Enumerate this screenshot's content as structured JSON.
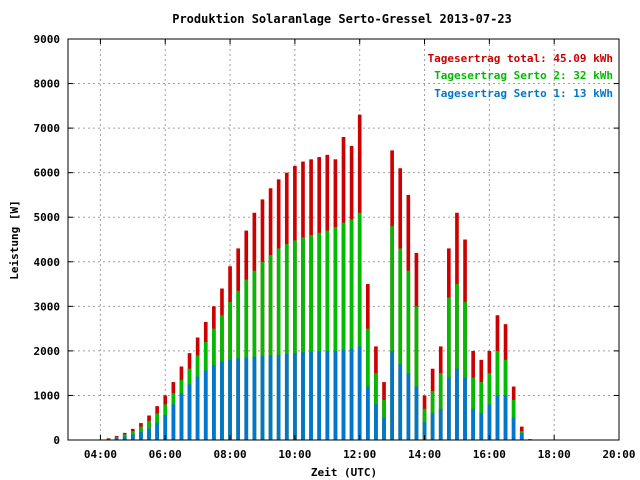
{
  "chart_data": {
    "type": "bar",
    "title": "Produktion Solaranlage Serto-Gressel 2013-07-23",
    "xlabel": "Zeit (UTC)",
    "ylabel": "Leistung [W]",
    "x_unit": "hours UTC",
    "xlim": [
      3.0,
      20.0
    ],
    "ylim": [
      0,
      9000
    ],
    "xticks": [
      {
        "value": 4,
        "label": "04:00"
      },
      {
        "value": 6,
        "label": "06:00"
      },
      {
        "value": 8,
        "label": "08:00"
      },
      {
        "value": 10,
        "label": "10:00"
      },
      {
        "value": 12,
        "label": "12:00"
      },
      {
        "value": 14,
        "label": "14:00"
      },
      {
        "value": 16,
        "label": "16:00"
      },
      {
        "value": 18,
        "label": "18:00"
      },
      {
        "value": 20,
        "label": "20:00"
      }
    ],
    "yticks": [
      {
        "value": 0,
        "label": "0"
      },
      {
        "value": 1000,
        "label": "1000"
      },
      {
        "value": 2000,
        "label": "2000"
      },
      {
        "value": 3000,
        "label": "3000"
      },
      {
        "value": 4000,
        "label": "4000"
      },
      {
        "value": 5000,
        "label": "5000"
      },
      {
        "value": 6000,
        "label": "6000"
      },
      {
        "value": 7000,
        "label": "7000"
      },
      {
        "value": 8000,
        "label": "8000"
      },
      {
        "value": 9000,
        "label": "9000"
      }
    ],
    "grid": true,
    "legend_position": "top-right",
    "legend": [
      {
        "label": "Tagesertrag total: 45.09 kWh",
        "color": "#cc0000"
      },
      {
        "label": "Tagesertrag Serto 2: 32 kWh",
        "color": "#00bb00"
      },
      {
        "label": "Tagesertrag Serto 1: 13 kWh",
        "color": "#0077cc"
      }
    ],
    "colors": {
      "total": "#cc0000",
      "serto2": "#00bb00",
      "serto1": "#0077cc"
    },
    "series_keys": [
      "t",
      "total",
      "serto2",
      "serto1"
    ],
    "rows": [
      [
        4.0,
        10,
        10,
        5
      ],
      [
        4.25,
        40,
        30,
        20
      ],
      [
        4.5,
        90,
        70,
        50
      ],
      [
        4.75,
        160,
        130,
        80
      ],
      [
        5.0,
        250,
        200,
        120
      ],
      [
        5.25,
        380,
        300,
        180
      ],
      [
        5.5,
        550,
        430,
        260
      ],
      [
        5.75,
        760,
        600,
        380
      ],
      [
        6.0,
        1000,
        800,
        560
      ],
      [
        6.25,
        1300,
        1050,
        800
      ],
      [
        6.5,
        1650,
        1350,
        1050
      ],
      [
        6.75,
        1950,
        1600,
        1250
      ],
      [
        7.0,
        2300,
        1900,
        1420
      ],
      [
        7.25,
        2650,
        2200,
        1560
      ],
      [
        7.5,
        3000,
        2500,
        1680
      ],
      [
        7.75,
        3400,
        2800,
        1760
      ],
      [
        8.0,
        3900,
        3100,
        1800
      ],
      [
        8.25,
        4300,
        3350,
        1830
      ],
      [
        8.5,
        4700,
        3600,
        1850
      ],
      [
        8.75,
        5100,
        3800,
        1870
      ],
      [
        9.0,
        5400,
        4000,
        1880
      ],
      [
        9.25,
        5650,
        4150,
        1900
      ],
      [
        9.5,
        5850,
        4300,
        1910
      ],
      [
        9.75,
        6000,
        4400,
        1930
      ],
      [
        10.0,
        6150,
        4480,
        1950
      ],
      [
        10.25,
        6250,
        4550,
        1970
      ],
      [
        10.5,
        6300,
        4600,
        1980
      ],
      [
        10.75,
        6350,
        4650,
        2000
      ],
      [
        11.0,
        6400,
        4700,
        2000
      ],
      [
        11.25,
        6300,
        4780,
        2000
      ],
      [
        11.5,
        6800,
        4880,
        2030
      ],
      [
        11.75,
        6600,
        4950,
        2050
      ],
      [
        12.0,
        7300,
        5100,
        2100
      ],
      [
        12.25,
        3500,
        2500,
        1200
      ],
      [
        12.5,
        2100,
        1500,
        800
      ],
      [
        12.75,
        1300,
        900,
        500
      ],
      [
        13.0,
        6500,
        4800,
        2000
      ],
      [
        13.25,
        6100,
        4300,
        1700
      ],
      [
        13.5,
        5500,
        3800,
        1500
      ],
      [
        13.75,
        4200,
        3000,
        1200
      ],
      [
        14.0,
        1000,
        700,
        400
      ],
      [
        14.25,
        1600,
        1100,
        600
      ],
      [
        14.5,
        2100,
        1500,
        700
      ],
      [
        14.75,
        4300,
        3200,
        1400
      ],
      [
        15.0,
        5100,
        3500,
        1600
      ],
      [
        15.25,
        4500,
        3100,
        1400
      ],
      [
        15.5,
        2000,
        1400,
        700
      ],
      [
        15.75,
        1800,
        1300,
        600
      ],
      [
        16.0,
        2000,
        1500,
        800
      ],
      [
        16.25,
        2800,
        2000,
        1000
      ],
      [
        16.5,
        2600,
        1800,
        1000
      ],
      [
        16.75,
        1200,
        900,
        500
      ],
      [
        17.0,
        300,
        200,
        150
      ],
      [
        17.25,
        20,
        15,
        10
      ],
      [
        17.5,
        5,
        5,
        3
      ]
    ]
  }
}
